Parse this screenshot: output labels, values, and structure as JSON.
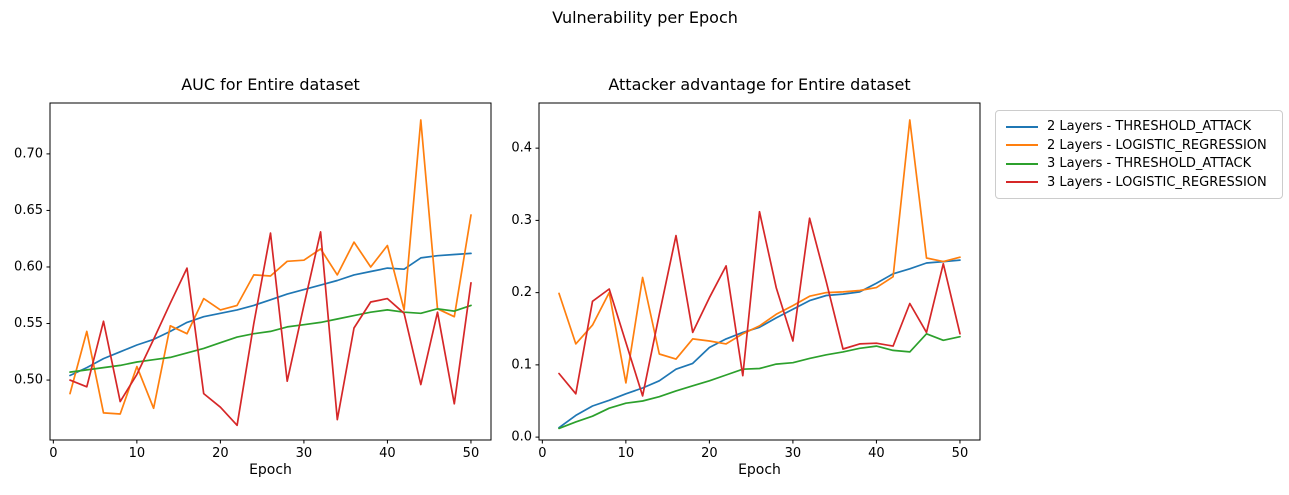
{
  "figure": {
    "suptitle": "Vulnerability per Epoch"
  },
  "colors": {
    "blue": "#1f77b4",
    "orange": "#ff7f0e",
    "green": "#2ca02c",
    "red": "#d62728",
    "axis": "#000000",
    "legend_border": "#cccccc"
  },
  "legend": {
    "items": [
      {
        "label": "2 Layers - THRESHOLD_ATTACK",
        "color": "#1f77b4"
      },
      {
        "label": "2 Layers - LOGISTIC_REGRESSION",
        "color": "#ff7f0e"
      },
      {
        "label": "3 Layers - THRESHOLD_ATTACK",
        "color": "#2ca02c"
      },
      {
        "label": "3 Layers - LOGISTIC_REGRESSION",
        "color": "#d62728"
      }
    ]
  },
  "chart_data": [
    {
      "type": "line",
      "title": "AUC for Entire dataset",
      "xlabel": "Epoch",
      "grid": false,
      "legend_position": "outside-right-of-second-chart",
      "x": [
        2,
        4,
        6,
        8,
        10,
        12,
        14,
        16,
        18,
        20,
        22,
        24,
        26,
        28,
        30,
        32,
        34,
        36,
        38,
        40,
        42,
        44,
        46,
        48,
        50
      ],
      "xlim": [
        -0.4,
        52.4
      ],
      "ylim": [
        0.447,
        0.745
      ],
      "xticks": {
        "values": [
          0,
          10,
          20,
          30,
          40,
          50
        ],
        "labels": [
          "0",
          "10",
          "20",
          "30",
          "40",
          "50"
        ]
      },
      "yticks": {
        "values": [
          0.5,
          0.55,
          0.6,
          0.65,
          0.7
        ],
        "labels": [
          "0.50",
          "0.55",
          "0.60",
          "0.65",
          "0.70"
        ]
      },
      "series": [
        {
          "name": "2 Layers - THRESHOLD_ATTACK",
          "color": "#1f77b4",
          "values": [
            0.504,
            0.511,
            0.519,
            0.525,
            0.531,
            0.536,
            0.543,
            0.551,
            0.556,
            0.559,
            0.562,
            0.566,
            0.571,
            0.576,
            0.58,
            0.584,
            0.588,
            0.593,
            0.596,
            0.599,
            0.598,
            0.608,
            0.61,
            0.611,
            0.612
          ]
        },
        {
          "name": "2 Layers - LOGISTIC_REGRESSION",
          "color": "#ff7f0e",
          "values": [
            0.488,
            0.543,
            0.471,
            0.47,
            0.512,
            0.475,
            0.548,
            0.541,
            0.572,
            0.562,
            0.566,
            0.593,
            0.592,
            0.605,
            0.606,
            0.616,
            0.593,
            0.622,
            0.6,
            0.619,
            0.562,
            0.73,
            0.563,
            0.556,
            0.646
          ]
        },
        {
          "name": "3 Layers - THRESHOLD_ATTACK",
          "color": "#2ca02c",
          "values": [
            0.507,
            0.509,
            0.511,
            0.513,
            0.516,
            0.518,
            0.52,
            0.524,
            0.528,
            0.533,
            0.538,
            0.541,
            0.543,
            0.547,
            0.549,
            0.551,
            0.554,
            0.557,
            0.56,
            0.562,
            0.56,
            0.559,
            0.563,
            0.561,
            0.566
          ]
        },
        {
          "name": "3 Layers - LOGISTIC_REGRESSION",
          "color": "#d62728",
          "values": [
            0.5,
            0.494,
            0.552,
            0.481,
            0.505,
            0.536,
            0.568,
            0.599,
            0.488,
            0.476,
            0.46,
            0.55,
            0.63,
            0.499,
            0.566,
            0.631,
            0.465,
            0.546,
            0.569,
            0.572,
            0.559,
            0.496,
            0.56,
            0.479,
            0.586
          ]
        }
      ]
    },
    {
      "type": "line",
      "title": "Attacker advantage for Entire dataset",
      "xlabel": "Epoch",
      "grid": false,
      "x": [
        2,
        4,
        6,
        8,
        10,
        12,
        14,
        16,
        18,
        20,
        22,
        24,
        26,
        28,
        30,
        32,
        34,
        36,
        38,
        40,
        42,
        44,
        46,
        48,
        50
      ],
      "xlim": [
        -0.4,
        52.4
      ],
      "ylim": [
        -0.004,
        0.4625
      ],
      "xticks": {
        "values": [
          0,
          10,
          20,
          30,
          40,
          50
        ],
        "labels": [
          "0",
          "10",
          "20",
          "30",
          "40",
          "50"
        ]
      },
      "yticks": {
        "values": [
          0.0,
          0.1,
          0.2,
          0.3,
          0.4
        ],
        "labels": [
          "0.0",
          "0.1",
          "0.2",
          "0.3",
          "0.4"
        ]
      },
      "series": [
        {
          "name": "2 Layers - THRESHOLD_ATTACK",
          "color": "#1f77b4",
          "values": [
            0.013,
            0.03,
            0.043,
            0.051,
            0.06,
            0.068,
            0.078,
            0.094,
            0.102,
            0.124,
            0.136,
            0.145,
            0.152,
            0.165,
            0.177,
            0.189,
            0.196,
            0.198,
            0.201,
            0.213,
            0.226,
            0.233,
            0.241,
            0.243,
            0.245
          ]
        },
        {
          "name": "2 Layers - LOGISTIC_REGRESSION",
          "color": "#ff7f0e",
          "values": [
            0.199,
            0.129,
            0.155,
            0.2,
            0.075,
            0.221,
            0.115,
            0.108,
            0.136,
            0.133,
            0.129,
            0.143,
            0.154,
            0.17,
            0.182,
            0.195,
            0.2,
            0.201,
            0.203,
            0.207,
            0.222,
            0.439,
            0.248,
            0.243,
            0.249
          ]
        },
        {
          "name": "3 Layers - THRESHOLD_ATTACK",
          "color": "#2ca02c",
          "values": [
            0.012,
            0.021,
            0.029,
            0.04,
            0.047,
            0.05,
            0.056,
            0.064,
            0.071,
            0.078,
            0.086,
            0.094,
            0.095,
            0.101,
            0.103,
            0.109,
            0.114,
            0.118,
            0.123,
            0.126,
            0.12,
            0.118,
            0.143,
            0.134,
            0.139
          ]
        },
        {
          "name": "3 Layers - LOGISTIC_REGRESSION",
          "color": "#d62728",
          "values": [
            0.088,
            0.06,
            0.188,
            0.205,
            0.131,
            0.057,
            0.17,
            0.279,
            0.145,
            0.193,
            0.237,
            0.085,
            0.312,
            0.207,
            0.133,
            0.303,
            0.215,
            0.122,
            0.129,
            0.13,
            0.126,
            0.185,
            0.145,
            0.24,
            0.143
          ]
        }
      ]
    }
  ]
}
